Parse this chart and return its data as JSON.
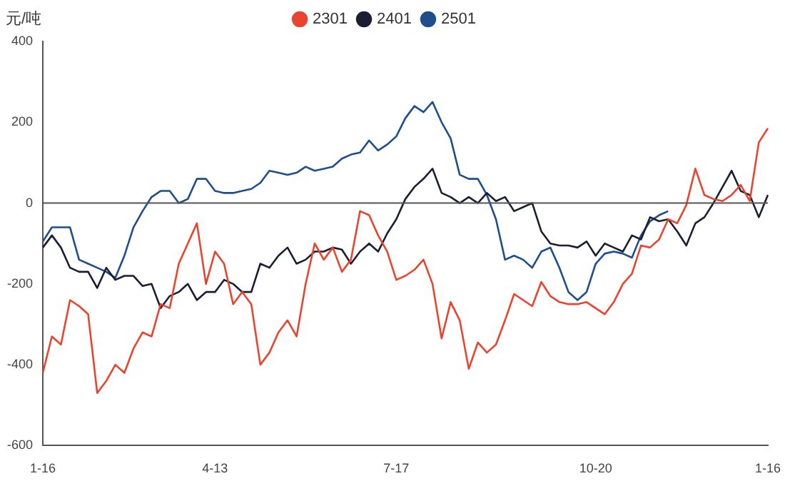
{
  "chart_data": {
    "type": "line",
    "ylabel": "元/吨",
    "legend": "top",
    "marker": "none",
    "grid": false,
    "categories": [
      "1-16",
      null,
      null,
      null,
      null,
      null,
      null,
      null,
      null,
      null,
      null,
      null,
      null,
      null,
      null,
      null,
      null,
      null,
      null,
      "4-13",
      null,
      null,
      null,
      null,
      null,
      null,
      null,
      null,
      null,
      null,
      null,
      null,
      null,
      null,
      null,
      null,
      null,
      null,
      null,
      "7-17",
      null,
      null,
      null,
      null,
      null,
      null,
      null,
      null,
      null,
      null,
      null,
      null,
      null,
      null,
      null,
      null,
      null,
      null,
      null,
      null,
      null,
      "10-20",
      null,
      null,
      null,
      null,
      null,
      null,
      null,
      null,
      null,
      null,
      null,
      null,
      null,
      null,
      null,
      null,
      null,
      null,
      "1-16"
    ],
    "ylim": [
      -600,
      400
    ],
    "yticks": [
      -600,
      -400,
      -200,
      0,
      200,
      400
    ],
    "ref_lines": [
      {
        "axis": "y",
        "value": 0,
        "color": "#555555"
      }
    ],
    "series": [
      {
        "name": "2301",
        "color": "#e8442e",
        "values": [
          -420,
          -330,
          -350,
          -240,
          -255,
          -275,
          -470,
          -440,
          -400,
          -420,
          -360,
          -320,
          -330,
          -250,
          -260,
          -150,
          -100,
          -50,
          -200,
          -120,
          -150,
          -250,
          -220,
          -250,
          -400,
          -370,
          -320,
          -290,
          -330,
          -200,
          -100,
          -140,
          -110,
          -170,
          -140,
          -20,
          -30,
          -80,
          -120,
          -190,
          -180,
          -165,
          -140,
          -200,
          -335,
          -245,
          -290,
          -410,
          -345,
          -370,
          -350,
          -290,
          -225,
          -240,
          -255,
          -195,
          -230,
          -245,
          -250,
          -250,
          -245,
          -260,
          -275,
          -245,
          -200,
          -175,
          -105,
          -110,
          -90,
          -40,
          -50,
          -5,
          85,
          20,
          10,
          5,
          20,
          45,
          5,
          150,
          185
        ]
      },
      {
        "name": "2401",
        "color": "#1c1f33",
        "values": [
          -110,
          -80,
          -110,
          -160,
          -170,
          -170,
          -210,
          -160,
          -190,
          -180,
          -180,
          -205,
          -200,
          -260,
          -230,
          -220,
          -200,
          -240,
          -220,
          -220,
          -190,
          -200,
          -220,
          -220,
          -150,
          -160,
          -130,
          -110,
          -150,
          -140,
          -120,
          -120,
          -110,
          -115,
          -150,
          -120,
          -100,
          -120,
          -75,
          -40,
          10,
          40,
          60,
          85,
          25,
          15,
          0,
          15,
          0,
          25,
          5,
          15,
          -20,
          -10,
          0,
          -70,
          -100,
          -105,
          -105,
          -110,
          -95,
          -130,
          -100,
          -110,
          -120,
          -80,
          -90,
          -35,
          -45,
          -40,
          -70,
          -105,
          -50,
          -35,
          0,
          40,
          80,
          30,
          20,
          -35,
          20
        ]
      },
      {
        "name": "2501",
        "color": "#1f4e8c",
        "values": [
          -95,
          -60,
          -60,
          -60,
          -140,
          -150,
          -160,
          -170,
          -185,
          -130,
          -60,
          -20,
          15,
          30,
          30,
          0,
          10,
          60,
          60,
          30,
          25,
          25,
          30,
          35,
          50,
          80,
          75,
          70,
          75,
          90,
          80,
          85,
          90,
          110,
          120,
          125,
          155,
          130,
          145,
          165,
          210,
          240,
          225,
          250,
          200,
          160,
          70,
          60,
          60,
          20,
          -40,
          -140,
          -130,
          -140,
          -160,
          -120,
          -110,
          -160,
          -220,
          -240,
          -220,
          -150,
          -125,
          -120,
          -125,
          -135,
          -80,
          -45,
          -30,
          -20,
          null,
          null,
          null,
          null,
          null,
          null,
          null,
          null,
          null,
          null,
          null
        ]
      }
    ]
  }
}
